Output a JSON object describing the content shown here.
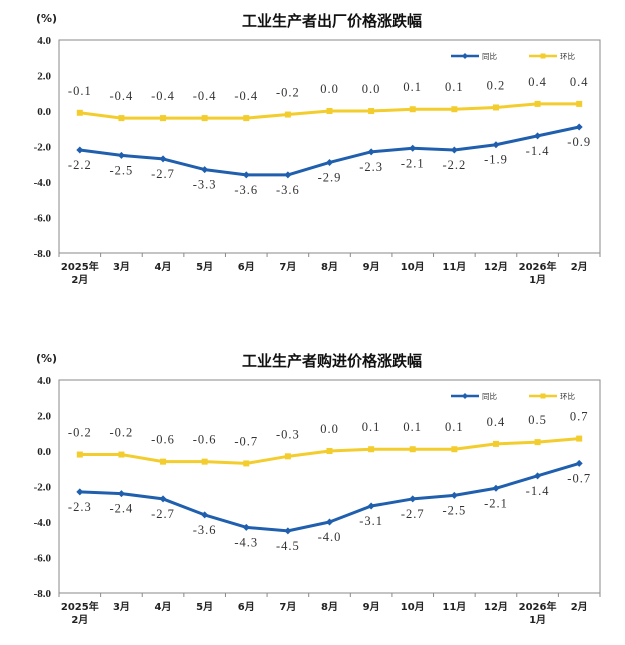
{
  "chart_data": [
    {
      "type": "line",
      "title": "工业生产者出厂价格涨跌幅",
      "unit_label": "(%)",
      "ylim": [
        -8.0,
        4.0
      ],
      "yticks": [
        "4.0",
        "2.0",
        "0.0",
        "-2.0",
        "-4.0",
        "-6.0",
        "-8.0"
      ],
      "categories": [
        "2025年\n2月",
        "3月",
        "4月",
        "5月",
        "6月",
        "7月",
        "8月",
        "9月",
        "10月",
        "11月",
        "12月",
        "2026年\n1月",
        "2月"
      ],
      "legend_position": "top-right",
      "series": [
        {
          "name": "同比",
          "color": "#1f5fae",
          "values": [
            -2.2,
            -2.5,
            -2.7,
            -3.3,
            -3.6,
            -3.6,
            -2.9,
            -2.3,
            -2.1,
            -2.2,
            -1.9,
            -1.4,
            -0.9
          ],
          "labels": [
            "-2.2",
            "-2.5",
            "-2.7",
            "-3.3",
            "-3.6",
            "-3.6",
            "-2.9",
            "-2.3",
            "-2.1",
            "-2.2",
            "-1.9",
            "-1.4",
            "-0.9"
          ]
        },
        {
          "name": "环比",
          "color": "#f2cd2d",
          "values": [
            -0.1,
            -0.4,
            -0.4,
            -0.4,
            -0.4,
            -0.2,
            0.0,
            0.0,
            0.1,
            0.1,
            0.2,
            0.4,
            0.4
          ],
          "labels": [
            "-0.1",
            "-0.4",
            "-0.4",
            "-0.4",
            "-0.4",
            "-0.2",
            "0.0",
            "0.0",
            "0.1",
            "0.1",
            "0.2",
            "0.4",
            "0.4"
          ]
        }
      ]
    },
    {
      "type": "line",
      "title": "工业生产者购进价格涨跌幅",
      "unit_label": "(%)",
      "ylim": [
        -8.0,
        4.0
      ],
      "yticks": [
        "4.0",
        "2.0",
        "0.0",
        "-2.0",
        "-4.0",
        "-6.0",
        "-8.0"
      ],
      "categories": [
        "2025年\n2月",
        "3月",
        "4月",
        "5月",
        "6月",
        "7月",
        "8月",
        "9月",
        "10月",
        "11月",
        "12月",
        "2026年\n1月",
        "2月"
      ],
      "legend_position": "top-right",
      "series": [
        {
          "name": "同比",
          "color": "#1f5fae",
          "values": [
            -2.3,
            -2.4,
            -2.7,
            -3.6,
            -4.3,
            -4.5,
            -4.0,
            -3.1,
            -2.7,
            -2.5,
            -2.1,
            -1.4,
            -0.7
          ],
          "labels": [
            "-2.3",
            "-2.4",
            "-2.7",
            "-3.6",
            "-4.3",
            "-4.5",
            "-4.0",
            "-3.1",
            "-2.7",
            "-2.5",
            "-2.1",
            "-1.4",
            "-0.7"
          ]
        },
        {
          "name": "环比",
          "color": "#f2cd2d",
          "values": [
            -0.2,
            -0.2,
            -0.6,
            -0.6,
            -0.7,
            -0.3,
            0.0,
            0.1,
            0.1,
            0.1,
            0.4,
            0.5,
            0.7
          ],
          "labels": [
            "-0.2",
            "-0.2",
            "-0.6",
            "-0.6",
            "-0.7",
            "-0.3",
            "0.0",
            "0.1",
            "0.1",
            "0.1",
            "0.4",
            "0.5",
            "0.7"
          ]
        }
      ]
    }
  ]
}
